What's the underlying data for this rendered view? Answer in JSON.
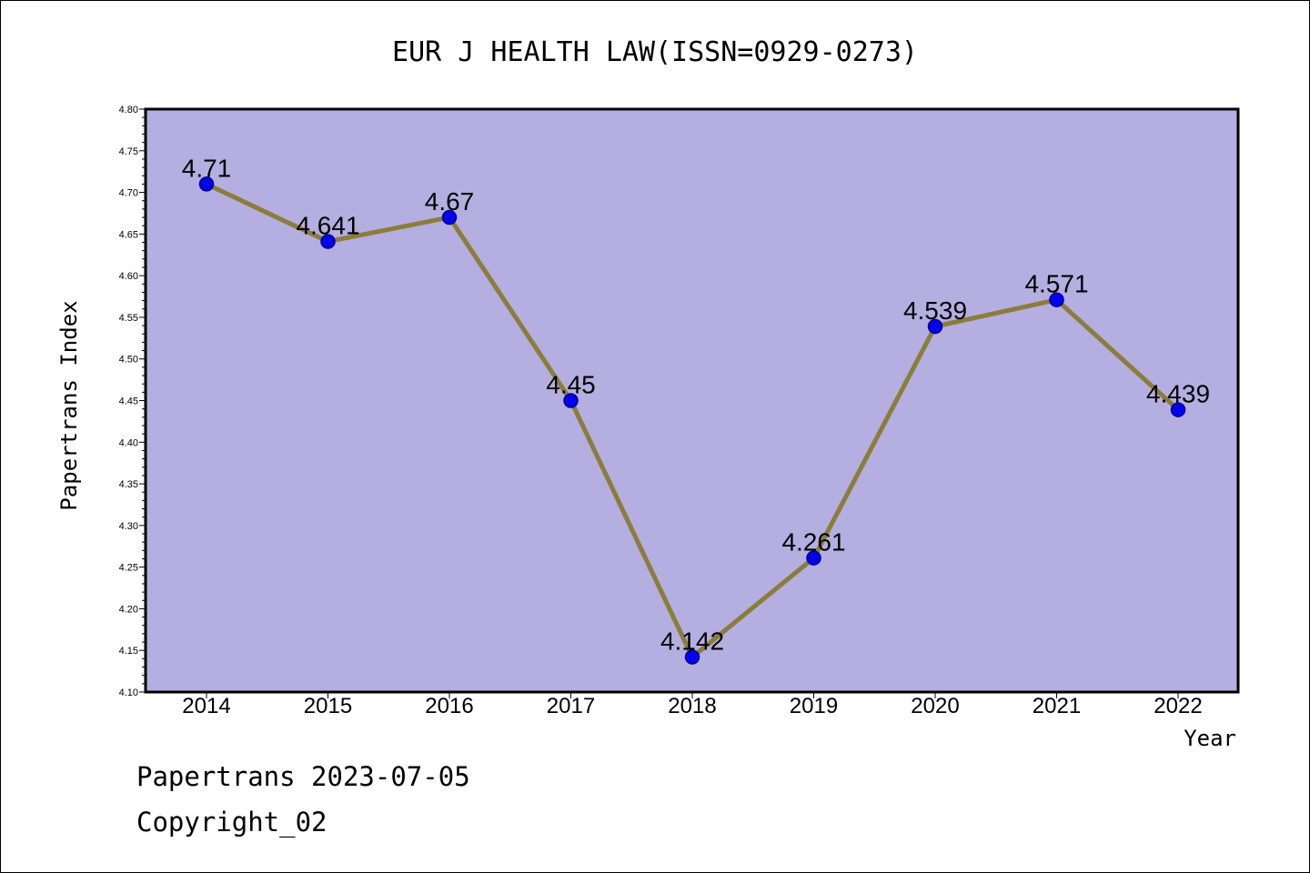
{
  "colors": {
    "plot_background": "#b5aee0",
    "line": "#8b7d3a",
    "marker": "#0000ee",
    "marker_edge": "#00008b"
  },
  "chart_data": {
    "type": "line",
    "title": "EUR J HEALTH LAW(ISSN=0929-0273)",
    "xlabel": "Year",
    "ylabel": "Papertrans Index",
    "categories": [
      "2014",
      "2015",
      "2016",
      "2017",
      "2018",
      "2019",
      "2020",
      "2021",
      "2022"
    ],
    "series": [
      {
        "values": [
          4.71,
          4.641,
          4.67,
          4.45,
          4.142,
          4.261,
          4.539,
          4.571,
          4.439
        ],
        "labels": [
          "4.71",
          "4.641",
          "4.67",
          "4.45",
          "4.142",
          "4.261",
          "4.539",
          "4.571",
          "4.439"
        ]
      }
    ],
    "ylim": [
      4.1,
      4.8
    ],
    "yticks": [
      "4.10",
      "4.15",
      "4.20",
      "4.25",
      "4.30",
      "4.35",
      "4.40",
      "4.45",
      "4.50",
      "4.55",
      "4.60",
      "4.65",
      "4.70",
      "4.75",
      "4.80"
    ],
    "grid": false,
    "legend": "none"
  },
  "footer": {
    "line1": "Papertrans 2023-07-05",
    "line2": "Copyright_02"
  }
}
